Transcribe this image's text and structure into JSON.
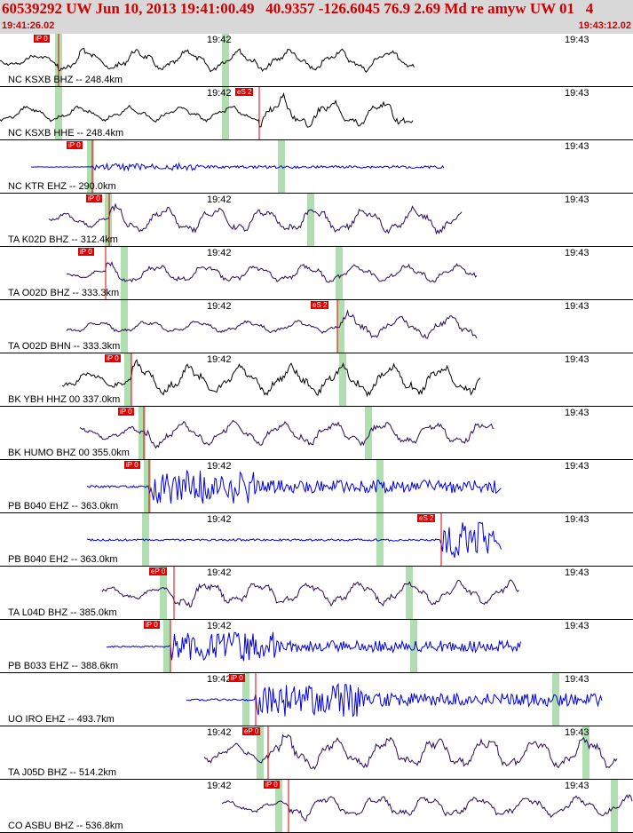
{
  "header": {
    "title": "60539292 UW Jun 10, 2013 19:41:00.49   40.9357 -126.6045 76.9 2.69 Md re amyw UW 01   4",
    "start_time": "19:41:26.02",
    "end_time": "19:43:12.02",
    "text_color": "#cc0000",
    "background": "#d8d8d8"
  },
  "colors": {
    "trace_black": "#000000",
    "trace_blue": "#0000dd",
    "trace_purple": "#2a0a5a",
    "pick_marker": "#e00000",
    "shading": "#8fd08f",
    "divider": "#000000"
  },
  "time_labels": {
    "min42": "19:42",
    "min43": "19:43"
  },
  "traces": [
    {
      "station": "NC KSXB BHZ -- 248.4km",
      "color": "black",
      "amp": 11,
      "kind": "low",
      "has42": true,
      "picks": [
        {
          "label": "iP 0"
        }
      ]
    },
    {
      "station": "NC KSXB HHE -- 248.4km",
      "color": "black",
      "amp": 14,
      "kind": "low",
      "has42": true,
      "picks": [
        {
          "label": "eS 2"
        }
      ]
    },
    {
      "station": "NC KTR EHZ -- 290.0km",
      "color": "blue",
      "amp": 3,
      "kind": "hf",
      "has42": false,
      "picks": [
        {
          "label": "iP 0"
        }
      ]
    },
    {
      "station": "TA K02D BHZ -- 312.4km",
      "color": "purple",
      "amp": 13,
      "kind": "low",
      "has42": true,
      "picks": [
        {
          "label": "iP 0"
        }
      ]
    },
    {
      "station": "TA O02D BHZ -- 333.3km",
      "color": "purple",
      "amp": 9,
      "kind": "low",
      "has42": true,
      "picks": [
        {
          "label": "iP 0"
        }
      ]
    },
    {
      "station": "TA O02D BHN -- 333.3km",
      "color": "purple",
      "amp": 11,
      "kind": "low",
      "has42": true,
      "picks": [
        {
          "label": "eS 2"
        }
      ]
    },
    {
      "station": "BK YBH HHZ 00 337.0km",
      "color": "black",
      "amp": 15,
      "kind": "low",
      "has42": true,
      "picks": [
        {
          "label": "iP 0"
        }
      ]
    },
    {
      "station": "BK HUMO BHZ 00 355.0km",
      "color": "purple",
      "amp": 12,
      "kind": "low",
      "has42": false,
      "picks": [
        {
          "label": "iP 0"
        }
      ]
    },
    {
      "station": "PB B040 EHZ -- 363.0km",
      "color": "blue",
      "amp": 15,
      "kind": "hf",
      "has42": true,
      "picks": [
        {
          "label": "iP 0"
        }
      ]
    },
    {
      "station": "PB B040 EH2 -- 363.0km",
      "color": "blue",
      "amp": 16,
      "kind": "hf",
      "has42": true,
      "picks": [
        {
          "label": "eS 2"
        }
      ]
    },
    {
      "station": "TA L04D BHZ -- 385.0km",
      "color": "purple",
      "amp": 12,
      "kind": "low",
      "has42": true,
      "picks": [
        {
          "label": "eP 0"
        }
      ]
    },
    {
      "station": "PB B033 EHZ -- 388.6km",
      "color": "blue",
      "amp": 13,
      "kind": "hf",
      "has42": true,
      "picks": [
        {
          "label": "iP 0"
        }
      ]
    },
    {
      "station": "UO IRO EHZ -- 493.7km",
      "color": "blue",
      "amp": 15,
      "kind": "hf",
      "has42": true,
      "picks": [
        {
          "label": "iP 0"
        }
      ]
    },
    {
      "station": "TA J05D BHZ -- 514.2km",
      "color": "purple",
      "amp": 16,
      "kind": "low",
      "has42": true,
      "picks": [
        {
          "label": "eP 0"
        }
      ]
    },
    {
      "station": "CO ASBU BHZ -- 536.8km",
      "color": "purple",
      "amp": 11,
      "kind": "low",
      "has42": true,
      "picks": [
        {
          "label": "iP 0"
        }
      ]
    }
  ]
}
